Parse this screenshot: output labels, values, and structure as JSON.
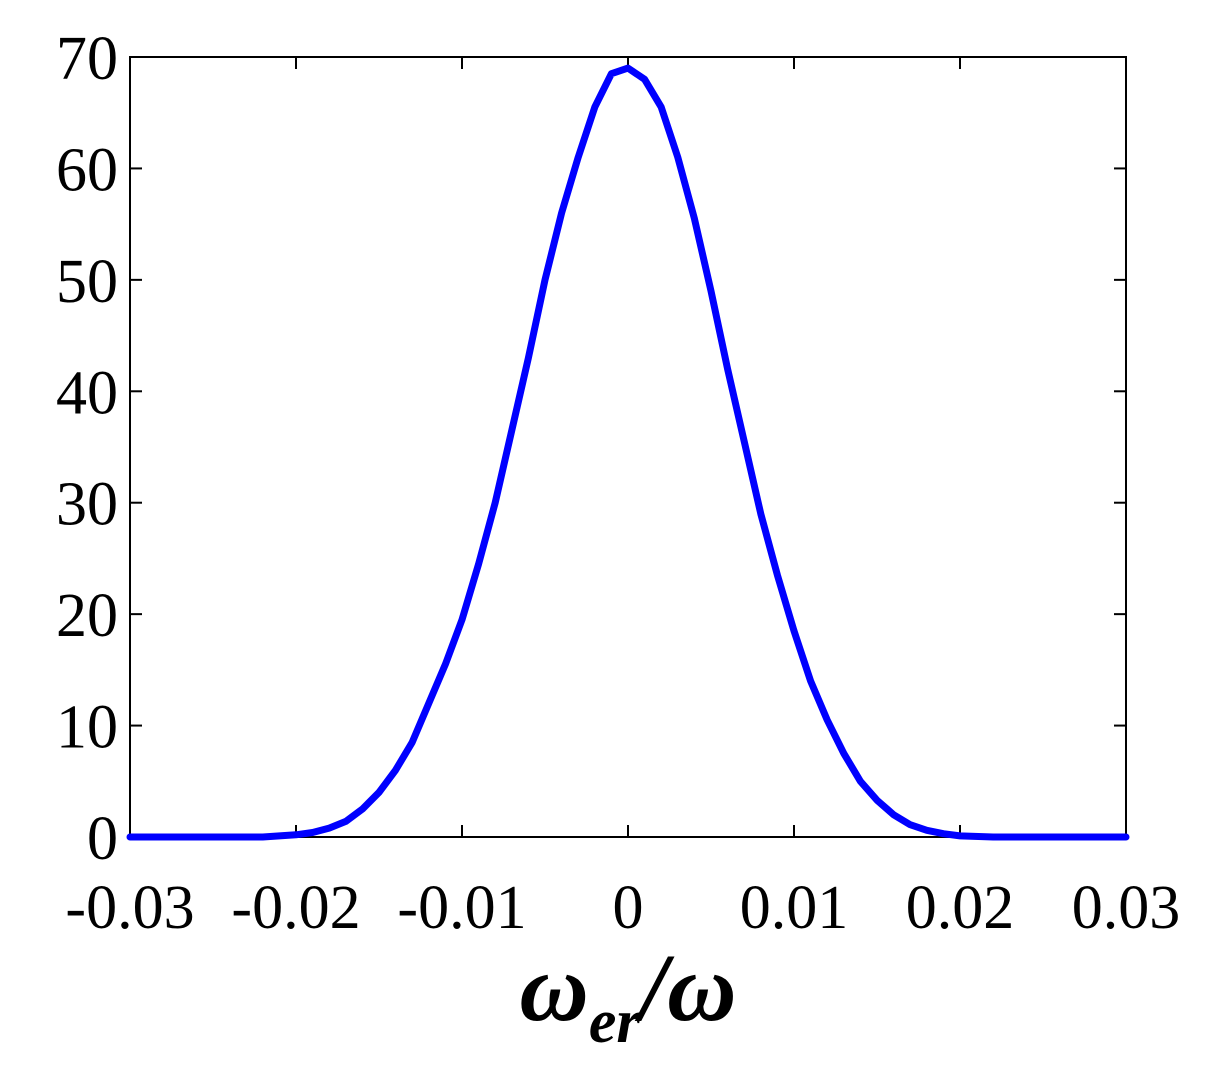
{
  "chart_data": {
    "type": "line",
    "title": "",
    "xlabel": {
      "symbol": "ω",
      "subscript": "er",
      "tail": "/ω"
    },
    "ylabel": "",
    "xlim": [
      -0.03,
      0.03
    ],
    "ylim": [
      0,
      70
    ],
    "grid": false,
    "legend": "none",
    "x_ticks": [
      -0.03,
      -0.02,
      -0.01,
      0,
      0.01,
      0.02,
      0.03
    ],
    "x_tick_labels": [
      "-0.03",
      "-0.02",
      "-0.01",
      "0",
      "0.01",
      "0.02",
      "0.03"
    ],
    "y_ticks": [
      0,
      10,
      20,
      30,
      40,
      50,
      60,
      70
    ],
    "y_tick_labels": [
      "0",
      "10",
      "20",
      "30",
      "40",
      "50",
      "60",
      "70"
    ],
    "series": [
      {
        "color": "#0000ff",
        "x": [
          -0.03,
          -0.028,
          -0.026,
          -0.024,
          -0.022,
          -0.02,
          -0.019,
          -0.018,
          -0.017,
          -0.016,
          -0.015,
          -0.014,
          -0.013,
          -0.012,
          -0.011,
          -0.01,
          -0.009,
          -0.008,
          -0.007,
          -0.006,
          -0.005,
          -0.004,
          -0.003,
          -0.002,
          -0.001,
          0,
          0.001,
          0.002,
          0.003,
          0.004,
          0.005,
          0.006,
          0.007,
          0.008,
          0.009,
          0.01,
          0.011,
          0.012,
          0.013,
          0.014,
          0.015,
          0.016,
          0.017,
          0.018,
          0.019,
          0.02,
          0.022,
          0.024,
          0.026,
          0.028,
          0.03
        ],
        "y": [
          0,
          0,
          0,
          0,
          0,
          0.2,
          0.4,
          0.8,
          1.4,
          2.5,
          4,
          6,
          8.5,
          12,
          15.5,
          19.5,
          24.5,
          30,
          36.5,
          43,
          50,
          56,
          61,
          65.5,
          68.5,
          69,
          68,
          65.5,
          61,
          55.5,
          49,
          42,
          35.5,
          29,
          23.5,
          18.5,
          14,
          10.5,
          7.5,
          5,
          3.3,
          2,
          1.1,
          0.6,
          0.3,
          0.1,
          0,
          0,
          0,
          0,
          0
        ]
      }
    ]
  }
}
